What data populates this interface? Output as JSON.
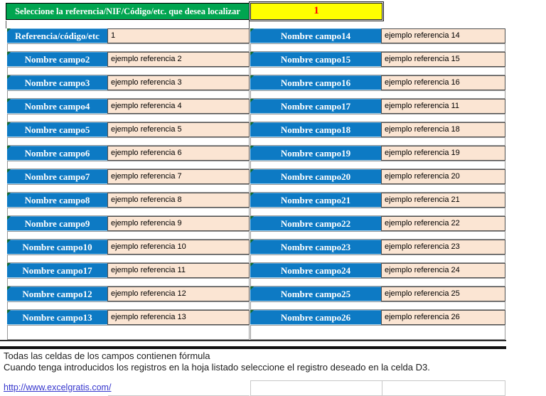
{
  "header": {
    "prompt": "Seleccione la referencia/NIF/Código/etc. que desea localizar",
    "selector_value": "1"
  },
  "fields": {
    "left": [
      {
        "label": "Referencia/código/etc",
        "value": "1"
      },
      {
        "label": "Nombre campo2",
        "value": "ejemplo referencia 2"
      },
      {
        "label": "Nombre campo3",
        "value": "ejemplo referencia 3"
      },
      {
        "label": "Nombre campo4",
        "value": "ejemplo referencia 4"
      },
      {
        "label": "Nombre campo5",
        "value": "ejemplo referencia 5"
      },
      {
        "label": "Nombre campo6",
        "value": "ejemplo referencia 6"
      },
      {
        "label": "Nombre campo7",
        "value": "ejemplo referencia 7"
      },
      {
        "label": "Nombre campo8",
        "value": "ejemplo referencia 8"
      },
      {
        "label": "Nombre campo9",
        "value": "ejemplo referencia 9"
      },
      {
        "label": "Nombre campo10",
        "value": "ejemplo referencia 10"
      },
      {
        "label": "Nombre campo17",
        "value": "ejemplo referencia 11"
      },
      {
        "label": "Nombre campo12",
        "value": "ejemplo referencia 12"
      },
      {
        "label": "Nombre campo13",
        "value": "ejemplo referencia 13"
      }
    ],
    "right": [
      {
        "label": "Nombre campo14",
        "value": "ejemplo referencia 14"
      },
      {
        "label": "Nombre campo15",
        "value": "ejemplo referencia 15"
      },
      {
        "label": "Nombre campo16",
        "value": "ejemplo referencia 16"
      },
      {
        "label": "Nombre campo17",
        "value": "ejemplo referencia 11"
      },
      {
        "label": "Nombre campo18",
        "value": "ejemplo referencia 18"
      },
      {
        "label": "Nombre campo19",
        "value": "ejemplo referencia 19"
      },
      {
        "label": "Nombre campo20",
        "value": "ejemplo referencia 20"
      },
      {
        "label": "Nombre campo21",
        "value": "ejemplo referencia 21"
      },
      {
        "label": "Nombre campo22",
        "value": "ejemplo referencia 22"
      },
      {
        "label": "Nombre campo23",
        "value": "ejemplo referencia 23"
      },
      {
        "label": "Nombre campo24",
        "value": "ejemplo referencia 24"
      },
      {
        "label": "Nombre campo25",
        "value": "ejemplo referencia 25"
      },
      {
        "label": "Nombre campo26",
        "value": "ejemplo referencia 26"
      }
    ]
  },
  "footer": {
    "note1": "Todas las celdas de los campos contienen fórmula",
    "note2": "Cuando tenga introducidos los registros en la hoja listado seleccione el registro deseado en la celda D3.",
    "link": "http://www.excelgratis.com/"
  },
  "colors": {
    "header_green": "#00a550",
    "selector_yellow": "#ffff00",
    "selector_text_red": "#ff0000",
    "label_blue": "#0d7ac4",
    "value_peach": "#fbe5d3",
    "link_blue": "#3535cd",
    "formula_flag_green": "#156b31"
  }
}
